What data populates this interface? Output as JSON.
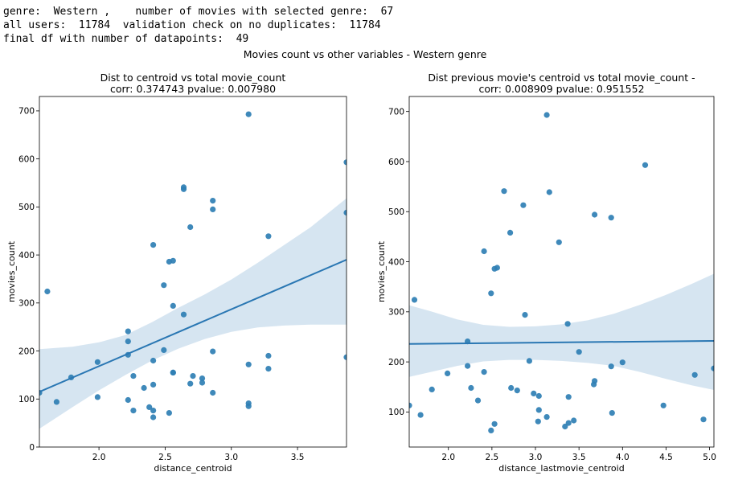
{
  "console": {
    "line1": "genre:  Western ,    number of movies with selected genre:  67",
    "line2": "all users:  11784  validation check on no duplicates:  11784",
    "line3": "final df with number of datapoints:  49"
  },
  "suptitle": "Movies count vs other variables - Western genre",
  "colors": {
    "point": "#2f7fb4",
    "line": "#2a77b3",
    "band": "#cfe0ef"
  },
  "chart_data": [
    {
      "type": "scatter",
      "title_line1": "Dist to centroid vs total movie_count",
      "title_line2": "corr: 0.374743  pvalue: 0.007980",
      "xlabel": "distance_centroid",
      "ylabel": "movies_count",
      "xlim": [
        1.55,
        3.87
      ],
      "ylim": [
        0,
        730
      ],
      "xticks": [
        2.0,
        2.5,
        3.0,
        3.5
      ],
      "xtick_labels": [
        "2.0",
        "2.5",
        "3.0",
        "3.5"
      ],
      "yticks": [
        0,
        100,
        200,
        300,
        400,
        500,
        600,
        700
      ],
      "ytick_labels": [
        "0",
        "100",
        "200",
        "300",
        "400",
        "500",
        "600",
        "700"
      ],
      "grid": false,
      "regression": {
        "x": [
          1.55,
          3.87
        ],
        "y": [
          115,
          390
        ]
      },
      "ci_band": {
        "x": [
          1.55,
          1.8,
          2.0,
          2.2,
          2.4,
          2.6,
          2.8,
          3.0,
          3.2,
          3.4,
          3.6,
          3.87
        ],
        "upper": [
          204,
          209,
          218,
          233,
          260,
          290,
          318,
          349,
          384,
          421,
          458,
          518
        ],
        "lower": [
          38,
          83,
          118,
          150,
          180,
          205,
          225,
          240,
          249,
          253,
          255,
          255
        ]
      },
      "points": [
        {
          "x": 1.55,
          "y": 113
        },
        {
          "x": 1.61,
          "y": 324
        },
        {
          "x": 1.68,
          "y": 94
        },
        {
          "x": 1.79,
          "y": 145
        },
        {
          "x": 1.99,
          "y": 177
        },
        {
          "x": 1.99,
          "y": 104
        },
        {
          "x": 2.22,
          "y": 241
        },
        {
          "x": 2.22,
          "y": 220
        },
        {
          "x": 2.22,
          "y": 192
        },
        {
          "x": 2.22,
          "y": 98
        },
        {
          "x": 2.26,
          "y": 148
        },
        {
          "x": 2.26,
          "y": 76
        },
        {
          "x": 2.34,
          "y": 123
        },
        {
          "x": 2.38,
          "y": 83
        },
        {
          "x": 2.41,
          "y": 421
        },
        {
          "x": 2.41,
          "y": 180
        },
        {
          "x": 2.41,
          "y": 130
        },
        {
          "x": 2.41,
          "y": 76
        },
        {
          "x": 2.41,
          "y": 62
        },
        {
          "x": 2.49,
          "y": 337
        },
        {
          "x": 2.49,
          "y": 202
        },
        {
          "x": 2.53,
          "y": 386
        },
        {
          "x": 2.53,
          "y": 71
        },
        {
          "x": 2.56,
          "y": 388
        },
        {
          "x": 2.56,
          "y": 294
        },
        {
          "x": 2.56,
          "y": 155
        },
        {
          "x": 2.64,
          "y": 541
        },
        {
          "x": 2.64,
          "y": 537
        },
        {
          "x": 2.64,
          "y": 276
        },
        {
          "x": 2.69,
          "y": 458
        },
        {
          "x": 2.69,
          "y": 132
        },
        {
          "x": 2.71,
          "y": 148
        },
        {
          "x": 2.78,
          "y": 143
        },
        {
          "x": 2.78,
          "y": 134
        },
        {
          "x": 2.86,
          "y": 513
        },
        {
          "x": 2.86,
          "y": 495
        },
        {
          "x": 2.86,
          "y": 199
        },
        {
          "x": 2.86,
          "y": 113
        },
        {
          "x": 3.13,
          "y": 693
        },
        {
          "x": 3.13,
          "y": 172
        },
        {
          "x": 3.13,
          "y": 91
        },
        {
          "x": 3.13,
          "y": 85
        },
        {
          "x": 3.28,
          "y": 439
        },
        {
          "x": 3.28,
          "y": 190
        },
        {
          "x": 3.28,
          "y": 163
        },
        {
          "x": 3.87,
          "y": 593
        },
        {
          "x": 3.87,
          "y": 488
        },
        {
          "x": 3.87,
          "y": 187
        },
        {
          "x": 2.56,
          "y": 155
        }
      ]
    },
    {
      "type": "scatter",
      "title_line1": "Dist previous movie's centroid vs total movie_count -",
      "title_line2": "corr: 0.008909  pvalue: 0.951552",
      "xlabel": "distance_lastmovie_centroid",
      "ylabel": "movies_count",
      "xlim": [
        1.55,
        5.05
      ],
      "ylim": [
        30,
        730
      ],
      "xticks": [
        2.0,
        2.5,
        3.0,
        3.5,
        4.0,
        4.5,
        5.0
      ],
      "xtick_labels": [
        "2.0",
        "2.5",
        "3.0",
        "3.5",
        "4.0",
        "4.5",
        "5.0"
      ],
      "yticks": [
        100,
        200,
        300,
        400,
        500,
        600,
        700
      ],
      "ytick_labels": [
        "100",
        "200",
        "300",
        "400",
        "500",
        "600",
        "700"
      ],
      "grid": false,
      "regression": {
        "x": [
          1.55,
          5.05
        ],
        "y": [
          236,
          242
        ]
      },
      "ci_band": {
        "x": [
          1.55,
          1.8,
          2.1,
          2.4,
          2.7,
          3.0,
          3.3,
          3.6,
          3.9,
          4.2,
          4.5,
          4.8,
          5.05
        ],
        "upper": [
          313,
          301,
          285,
          274,
          270,
          271,
          275,
          283,
          296,
          314,
          334,
          356,
          376
        ],
        "lower": [
          170,
          180,
          192,
          201,
          204,
          204,
          202,
          198,
          192,
          180,
          166,
          153,
          144
        ]
      },
      "points": [
        {
          "x": 1.55,
          "y": 113
        },
        {
          "x": 1.61,
          "y": 324
        },
        {
          "x": 1.68,
          "y": 94
        },
        {
          "x": 1.81,
          "y": 145
        },
        {
          "x": 1.99,
          "y": 177
        },
        {
          "x": 2.22,
          "y": 241
        },
        {
          "x": 2.22,
          "y": 192
        },
        {
          "x": 2.26,
          "y": 148
        },
        {
          "x": 2.34,
          "y": 123
        },
        {
          "x": 2.41,
          "y": 421
        },
        {
          "x": 2.41,
          "y": 180
        },
        {
          "x": 2.49,
          "y": 337
        },
        {
          "x": 2.49,
          "y": 63
        },
        {
          "x": 2.53,
          "y": 386
        },
        {
          "x": 2.53,
          "y": 76
        },
        {
          "x": 2.56,
          "y": 388
        },
        {
          "x": 2.64,
          "y": 541
        },
        {
          "x": 2.71,
          "y": 458
        },
        {
          "x": 2.72,
          "y": 148
        },
        {
          "x": 2.79,
          "y": 143
        },
        {
          "x": 2.86,
          "y": 513
        },
        {
          "x": 2.88,
          "y": 294
        },
        {
          "x": 2.93,
          "y": 202
        },
        {
          "x": 2.98,
          "y": 137
        },
        {
          "x": 3.04,
          "y": 132
        },
        {
          "x": 3.04,
          "y": 104
        },
        {
          "x": 3.03,
          "y": 81
        },
        {
          "x": 3.13,
          "y": 693
        },
        {
          "x": 3.13,
          "y": 90
        },
        {
          "x": 3.16,
          "y": 539
        },
        {
          "x": 3.27,
          "y": 439
        },
        {
          "x": 3.34,
          "y": 71
        },
        {
          "x": 3.37,
          "y": 276
        },
        {
          "x": 3.38,
          "y": 130
        },
        {
          "x": 3.38,
          "y": 78
        },
        {
          "x": 3.44,
          "y": 83
        },
        {
          "x": 3.5,
          "y": 220
        },
        {
          "x": 3.68,
          "y": 494
        },
        {
          "x": 3.68,
          "y": 162
        },
        {
          "x": 3.67,
          "y": 155
        },
        {
          "x": 3.87,
          "y": 488
        },
        {
          "x": 3.87,
          "y": 191
        },
        {
          "x": 3.88,
          "y": 98
        },
        {
          "x": 4.0,
          "y": 199
        },
        {
          "x": 4.26,
          "y": 593
        },
        {
          "x": 4.47,
          "y": 113
        },
        {
          "x": 4.83,
          "y": 174
        },
        {
          "x": 4.93,
          "y": 85
        },
        {
          "x": 5.05,
          "y": 187
        }
      ]
    }
  ]
}
